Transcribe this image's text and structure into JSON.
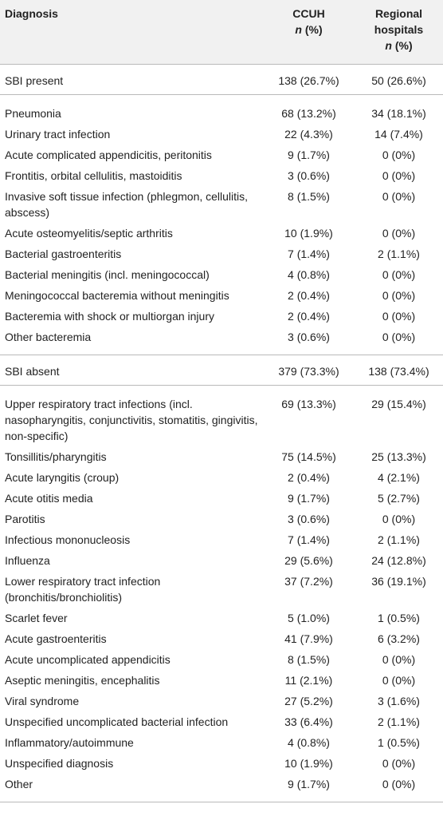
{
  "table": {
    "header": [
      {
        "label": "Diagnosis"
      },
      {
        "label": "CCUH",
        "unit_var": "n",
        "unit": "(%)"
      },
      {
        "label": "Regional hospitals",
        "unit_var": "n",
        "unit": "(%)"
      }
    ],
    "sections": [
      {
        "summary": [
          "SBI present",
          "138 (26.7%)",
          "50 (26.6%)"
        ],
        "rows": [
          [
            "Pneumonia",
            "68 (13.2%)",
            "34 (18.1%)"
          ],
          [
            "Urinary tract infection",
            "22 (4.3%)",
            "14 (7.4%)"
          ],
          [
            "Acute complicated appendicitis, peritonitis",
            "9 (1.7%)",
            "0 (0%)"
          ],
          [
            "Frontitis, orbital cellulitis, mastoiditis",
            "3 (0.6%)",
            "0 (0%)"
          ],
          [
            "Invasive soft tissue infection (phlegmon, cellulitis, abscess)",
            "8 (1.5%)",
            "0 (0%)"
          ],
          [
            "Acute osteomyelitis/septic arthritis",
            "10 (1.9%)",
            "0 (0%)"
          ],
          [
            "Bacterial gastroenteritis",
            "7 (1.4%)",
            "2 (1.1%)"
          ],
          [
            "Bacterial meningitis (incl. meningococcal)",
            "4 (0.8%)",
            "0 (0%)"
          ],
          [
            "Meningococcal bacteremia without meningitis",
            "2 (0.4%)",
            "0 (0%)"
          ],
          [
            "Bacteremia with shock or multiorgan injury",
            "2 (0.4%)",
            "0 (0%)"
          ],
          [
            "Other bacteremia",
            "3 (0.6%)",
            "0 (0%)"
          ]
        ]
      },
      {
        "summary": [
          "SBI absent",
          "379 (73.3%)",
          "138 (73.4%)"
        ],
        "rows": [
          [
            "Upper respiratory tract infections (incl. nasopharyngitis, conjunctivitis, stomatitis, gingivitis, non-specific)",
            "69 (13.3%)",
            "29 (15.4%)"
          ],
          [
            "Tonsillitis/pharyngitis",
            "75 (14.5%)",
            "25 (13.3%)"
          ],
          [
            "Acute laryngitis (croup)",
            "2 (0.4%)",
            "4 (2.1%)"
          ],
          [
            "Acute otitis media",
            "9 (1.7%)",
            "5 (2.7%)"
          ],
          [
            "Parotitis",
            "3 (0.6%)",
            "0 (0%)"
          ],
          [
            "Infectious mononucleosis",
            "7 (1.4%)",
            "2 (1.1%)"
          ],
          [
            "Influenza",
            "29 (5.6%)",
            "24 (12.8%)"
          ],
          [
            "Lower respiratory tract infection (bronchitis/bronchiolitis)",
            "37 (7.2%)",
            "36 (19.1%)"
          ],
          [
            "Scarlet fever",
            "5 (1.0%)",
            "1 (0.5%)"
          ],
          [
            "Acute gastroenteritis",
            "41 (7.9%)",
            "6 (3.2%)"
          ],
          [
            "Acute uncomplicated appendicitis",
            "8 (1.5%)",
            "0 (0%)"
          ],
          [
            "Aseptic meningitis, encephalitis",
            "11 (2.1%)",
            "0 (0%)"
          ],
          [
            "Viral syndrome",
            "27 (5.2%)",
            "3 (1.6%)"
          ],
          [
            "Unspecified uncomplicated bacterial infection",
            "33 (6.4%)",
            "2 (1.1%)"
          ],
          [
            "Inflammatory/autoimmune",
            "4 (0.8%)",
            "1 (0.5%)"
          ],
          [
            "Unspecified diagnosis",
            "10 (1.9%)",
            "0 (0%)"
          ],
          [
            "Other",
            "9 (1.7%)",
            "0 (0%)"
          ]
        ]
      }
    ]
  }
}
